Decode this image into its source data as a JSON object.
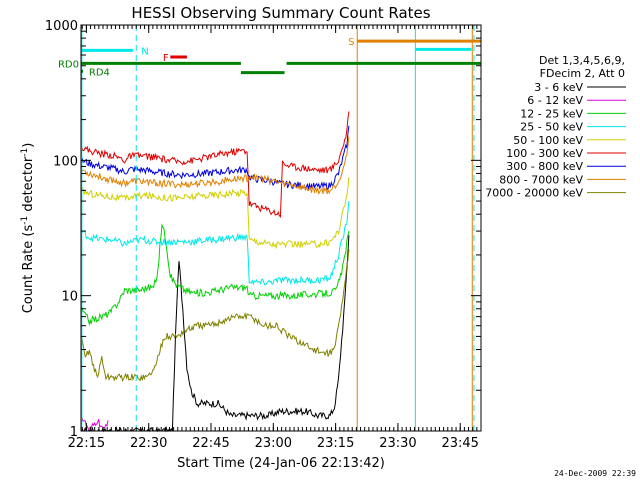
{
  "chart_data": {
    "type": "line",
    "title": "HESSI Observing Summary Count Rates",
    "xlabel": "Start Time (24-Jan-06 22:13:42)",
    "ylabel": "Count Rate (s",
    "ylabel_sup": "-1",
    "ylabel_mid": " detector",
    "ylabel_end": ")",
    "x_start_minutes": 0,
    "xlim_minutes": [
      0,
      96.3
    ],
    "ylim": [
      1,
      1000
    ],
    "yscale": "log",
    "x_ticks": [
      {
        "label": "22:15",
        "minutes": 1.3
      },
      {
        "label": "22:30",
        "minutes": 16.3
      },
      {
        "label": "22:45",
        "minutes": 31.3
      },
      {
        "label": "23:00",
        "minutes": 46.3
      },
      {
        "label": "23:15",
        "minutes": 61.3
      },
      {
        "label": "23:30",
        "minutes": 76.3
      },
      {
        "label": "23:45",
        "minutes": 91.3
      }
    ],
    "y_ticks": [
      {
        "label": "1",
        "value": 1
      },
      {
        "label": "10",
        "value": 10
      },
      {
        "label": "100",
        "value": 100
      },
      {
        "label": "1000",
        "value": 1000
      }
    ],
    "legend_header": [
      "Det 1,3,4,5,6,9,",
      "FDecim 2, Att 0"
    ],
    "series": [
      {
        "name": "3 - 6 keV",
        "color": "#000000",
        "points": [
          [
            0,
            1.0
          ],
          [
            22,
            1.0
          ],
          [
            22.5,
            3
          ],
          [
            23,
            8
          ],
          [
            23.6,
            18
          ],
          [
            24.5,
            8
          ],
          [
            25.5,
            3
          ],
          [
            26.5,
            2
          ],
          [
            28,
            1.6
          ],
          [
            30,
            1.6
          ],
          [
            33,
            1.6
          ],
          [
            36,
            1.3
          ],
          [
            39,
            1.3
          ],
          [
            42,
            1.3
          ],
          [
            45,
            1.3
          ],
          [
            48,
            1.4
          ],
          [
            51,
            1.4
          ],
          [
            54,
            1.4
          ],
          [
            57,
            1.3
          ],
          [
            60,
            1.3
          ],
          [
            61,
            1.5
          ],
          [
            62,
            2.4
          ],
          [
            63.5,
            9
          ],
          [
            64.5,
            28
          ]
        ]
      },
      {
        "name": "6 - 12 keV",
        "color": "#e000e0",
        "points": [
          [
            0,
            1.3
          ],
          [
            2,
            1.0
          ],
          [
            4,
            1.2
          ],
          [
            5.5,
            1.0
          ],
          [
            6.5,
            1.2
          ]
        ]
      },
      {
        "name": "12 - 25 keV",
        "color": "#00d000",
        "points": [
          [
            0,
            8
          ],
          [
            2,
            6.5
          ],
          [
            5,
            7
          ],
          [
            7,
            7.5
          ],
          [
            9,
            9
          ],
          [
            10.5,
            11
          ],
          [
            12,
            11
          ],
          [
            14,
            11
          ],
          [
            16,
            11.5
          ],
          [
            17.5,
            11.5
          ],
          [
            18.5,
            15
          ],
          [
            19.5,
            35
          ],
          [
            20.5,
            25
          ],
          [
            21.5,
            14
          ],
          [
            23,
            12
          ],
          [
            25,
            11
          ],
          [
            27,
            10.5
          ],
          [
            30,
            10.5
          ],
          [
            33,
            11
          ],
          [
            36,
            11.5
          ],
          [
            39,
            11.5
          ],
          [
            40,
            11.5
          ],
          [
            40.5,
            10
          ],
          [
            43,
            10
          ],
          [
            46,
            10
          ],
          [
            48,
            10
          ],
          [
            51,
            10
          ],
          [
            54,
            10.2
          ],
          [
            57,
            10.3
          ],
          [
            60,
            10.5
          ],
          [
            61.5,
            11
          ],
          [
            63,
            16
          ],
          [
            64.5,
            30
          ]
        ]
      },
      {
        "name": "25 - 50 keV",
        "color": "#00e8e8",
        "points": [
          [
            0,
            30
          ],
          [
            2,
            27
          ],
          [
            5,
            26
          ],
          [
            7,
            26
          ],
          [
            9,
            25
          ],
          [
            10.5,
            24
          ],
          [
            12,
            25
          ],
          [
            15,
            26
          ],
          [
            18,
            25
          ],
          [
            20,
            25
          ],
          [
            23,
            25
          ],
          [
            26,
            25
          ],
          [
            29,
            25.5
          ],
          [
            32,
            26
          ],
          [
            35,
            26.5
          ],
          [
            38,
            27
          ],
          [
            40,
            27
          ],
          [
            40.5,
            13
          ],
          [
            42,
            12.5
          ],
          [
            45,
            12.5
          ],
          [
            48,
            13
          ],
          [
            51,
            13
          ],
          [
            54,
            13
          ],
          [
            57,
            13
          ],
          [
            60,
            13.5
          ],
          [
            62,
            20
          ],
          [
            64,
            35
          ],
          [
            64.5,
            50
          ]
        ]
      },
      {
        "name": "50 - 100 keV",
        "color": "#d0d000",
        "points": [
          [
            0,
            60
          ],
          [
            2,
            57
          ],
          [
            5,
            55
          ],
          [
            7,
            54
          ],
          [
            9,
            53
          ],
          [
            10.5,
            52
          ],
          [
            12,
            54
          ],
          [
            15,
            55
          ],
          [
            18,
            54
          ],
          [
            21,
            53
          ],
          [
            24,
            53
          ],
          [
            27,
            54
          ],
          [
            30,
            55
          ],
          [
            33,
            56
          ],
          [
            36,
            57
          ],
          [
            39,
            58
          ],
          [
            40,
            58
          ],
          [
            40.5,
            26
          ],
          [
            43,
            25
          ],
          [
            46,
            24
          ],
          [
            48,
            24
          ],
          [
            51,
            24
          ],
          [
            54,
            24
          ],
          [
            57,
            24
          ],
          [
            60,
            25
          ],
          [
            62,
            30
          ],
          [
            64,
            55
          ],
          [
            64.5,
            75
          ]
        ]
      },
      {
        "name": "100 - 300 keV",
        "color": "#e00000",
        "points": [
          [
            0,
            125
          ],
          [
            2,
            118
          ],
          [
            5,
            112
          ],
          [
            7,
            110
          ],
          [
            9,
            105
          ],
          [
            10.5,
            100
          ],
          [
            12,
            108
          ],
          [
            15,
            108
          ],
          [
            18,
            105
          ],
          [
            21,
            100
          ],
          [
            24,
            98
          ],
          [
            27,
            100
          ],
          [
            30,
            105
          ],
          [
            33,
            110
          ],
          [
            36,
            115
          ],
          [
            39,
            118
          ],
          [
            40,
            118
          ],
          [
            40.5,
            48
          ],
          [
            43,
            45
          ],
          [
            46,
            42
          ],
          [
            48,
            40
          ],
          [
            48.5,
            95
          ],
          [
            51,
            90
          ],
          [
            54,
            88
          ],
          [
            57,
            85
          ],
          [
            60,
            85
          ],
          [
            62,
            100
          ],
          [
            64,
            160
          ],
          [
            64.5,
            230
          ]
        ]
      },
      {
        "name": "300 - 800 keV",
        "color": "#0000e0",
        "points": [
          [
            0,
            100
          ],
          [
            2,
            95
          ],
          [
            5,
            90
          ],
          [
            7,
            88
          ],
          [
            9,
            85
          ],
          [
            10.5,
            82
          ],
          [
            12,
            86
          ],
          [
            15,
            85
          ],
          [
            18,
            82
          ],
          [
            21,
            80
          ],
          [
            24,
            78
          ],
          [
            27,
            79
          ],
          [
            30,
            80
          ],
          [
            33,
            82
          ],
          [
            36,
            84
          ],
          [
            39,
            85
          ],
          [
            40,
            85
          ],
          [
            40.5,
            75
          ],
          [
            43,
            72
          ],
          [
            46,
            70
          ],
          [
            48,
            67
          ],
          [
            51,
            66
          ],
          [
            54,
            65
          ],
          [
            57,
            64
          ],
          [
            60,
            65
          ],
          [
            62,
            80
          ],
          [
            64,
            130
          ],
          [
            64.5,
            180
          ]
        ]
      },
      {
        "name": "800 - 7000 keV",
        "color": "#e08000",
        "points": [
          [
            0,
            85
          ],
          [
            2,
            80
          ],
          [
            5,
            75
          ],
          [
            7,
            72
          ],
          [
            9,
            70
          ],
          [
            10.5,
            68
          ],
          [
            12,
            70
          ],
          [
            15,
            70
          ],
          [
            18,
            68
          ],
          [
            21,
            67
          ],
          [
            24,
            66
          ],
          [
            27,
            67
          ],
          [
            30,
            68
          ],
          [
            33,
            70
          ],
          [
            36,
            72
          ],
          [
            39,
            74
          ],
          [
            40,
            74
          ],
          [
            40.5,
            76
          ],
          [
            43,
            74
          ],
          [
            46,
            71
          ],
          [
            48,
            68
          ],
          [
            51,
            66
          ],
          [
            54,
            62
          ],
          [
            57,
            60
          ],
          [
            60,
            60
          ],
          [
            62,
            70
          ],
          [
            64,
            110
          ],
          [
            64.5,
            150
          ]
        ]
      },
      {
        "name": "7000 - 20000 keV",
        "color": "#808000",
        "points": [
          [
            0,
            5
          ],
          [
            1,
            3.5
          ],
          [
            2,
            4
          ],
          [
            3,
            3
          ],
          [
            4,
            2.5
          ],
          [
            5,
            3.5
          ],
          [
            6,
            2.5
          ],
          [
            8,
            2.5
          ],
          [
            10,
            2.5
          ],
          [
            13,
            2.5
          ],
          [
            16,
            2.5
          ],
          [
            18,
            3
          ],
          [
            19,
            4
          ],
          [
            20,
            5
          ],
          [
            21,
            5
          ],
          [
            23,
            5
          ],
          [
            25,
            5.5
          ],
          [
            28,
            6
          ],
          [
            31,
            6
          ],
          [
            34,
            6.5
          ],
          [
            37,
            7
          ],
          [
            40,
            7
          ],
          [
            41,
            7
          ],
          [
            44,
            6
          ],
          [
            47,
            6
          ],
          [
            50,
            5
          ],
          [
            53,
            4.5
          ],
          [
            56,
            4
          ],
          [
            59,
            3.7
          ],
          [
            61,
            4
          ],
          [
            63,
            9
          ],
          [
            64.5,
            22
          ]
        ]
      }
    ],
    "vlines": [
      {
        "minutes": 0.2,
        "color": "#00e8e8",
        "style": "solid"
      },
      {
        "minutes": 13.3,
        "color": "#00e8e8",
        "style": "dashed"
      },
      {
        "minutes": 66.5,
        "color": "#e08000",
        "style": "solid"
      },
      {
        "minutes": 80.5,
        "color": "#00e8e8",
        "style": "solid"
      },
      {
        "minutes": 94.2,
        "color": "#e08000",
        "style": "solid"
      },
      {
        "minutes": 94.6,
        "color": "#00e8e8",
        "style": "dashed"
      }
    ],
    "bars": [
      {
        "label": "N",
        "color": "#00e8e8",
        "segments": [
          [
            0,
            12.5
          ]
        ],
        "value": 650,
        "label_at": 14.5
      },
      {
        "label": "F",
        "color": "#e00000",
        "segments": [
          [
            21.5,
            25.5
          ]
        ],
        "value": 580,
        "label_at": 19.7
      },
      {
        "label": "S",
        "color": "#e08000",
        "segments": [
          [
            66.5,
            96.3
          ]
        ],
        "value": 760,
        "label_at": 64.3
      },
      {
        "label": "",
        "color": "#00e8e8",
        "segments": [
          [
            80.5,
            94.0
          ]
        ],
        "value": 660
      },
      {
        "label": "RD0",
        "color": "#008000",
        "segments": [
          [
            0,
            38.5
          ],
          [
            49.5,
            96.3
          ]
        ],
        "value": 520,
        "label_at": "left"
      },
      {
        "label": "",
        "color": "#008000",
        "segments": [
          [
            38.5,
            49.0
          ]
        ],
        "value": 445
      },
      {
        "label": "RD4",
        "color": "#008000",
        "segments": [
          [
            0,
            0.5
          ]
        ],
        "value": 455,
        "label_at": 1.9
      }
    ],
    "footer_date": "24-Dec-2009 22:39"
  }
}
